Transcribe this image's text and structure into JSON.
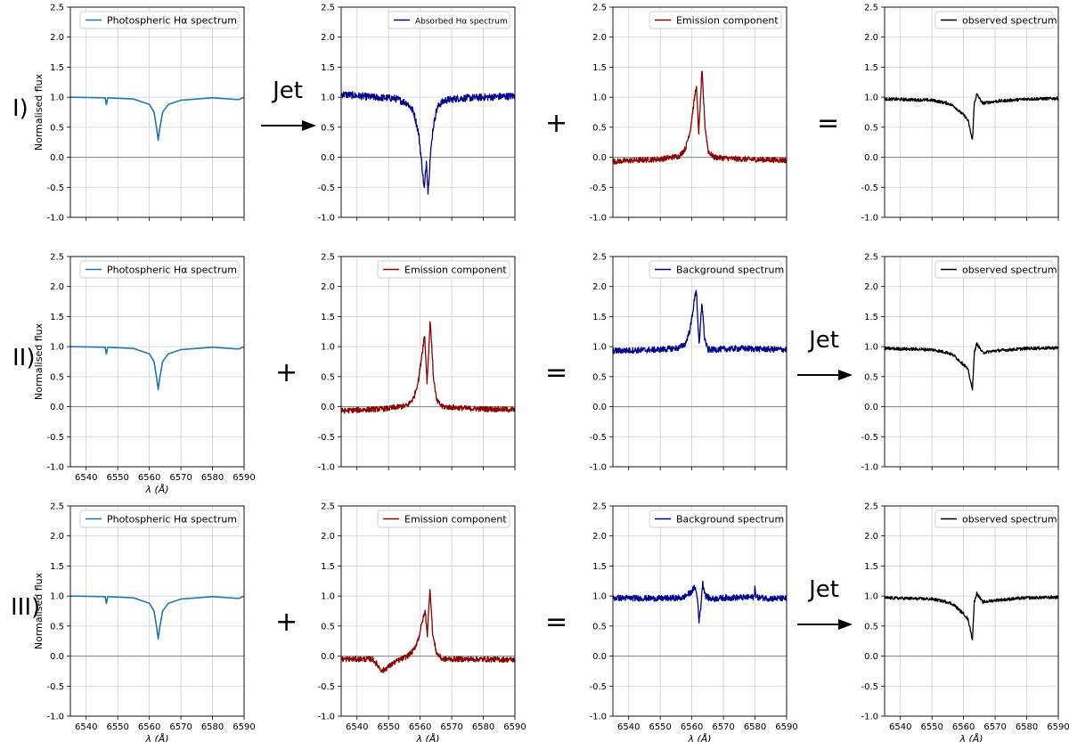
{
  "figure": {
    "rows": [
      {
        "label": "I)",
        "operators": [
          {
            "kind": "jet",
            "text": "Jet"
          },
          {
            "kind": "symbol",
            "text": "+"
          },
          {
            "kind": "symbol",
            "text": "="
          }
        ]
      },
      {
        "label": "II)",
        "operators": [
          {
            "kind": "symbol",
            "text": "+"
          },
          {
            "kind": "symbol",
            "text": "="
          },
          {
            "kind": "jet",
            "text": "Jet"
          }
        ]
      },
      {
        "label": "III)",
        "operators": [
          {
            "kind": "symbol",
            "text": "+"
          },
          {
            "kind": "symbol",
            "text": "="
          },
          {
            "kind": "jet",
            "text": "Jet"
          }
        ]
      }
    ],
    "ylabel": "Normalised flux",
    "xlabel": "λ (Å)"
  },
  "colors": {
    "photospheric": "#1f77b4",
    "absorbed": "#00008b",
    "emission": "#8b0000",
    "background": "#00008b",
    "observed": "#000000",
    "grid": "#d0d0d0",
    "zero_line": "#808080"
  },
  "chart_data": [
    {
      "type": "line",
      "row": 0,
      "col": 0,
      "profile": "photospheric",
      "legend": "Photospheric Hα spectrum",
      "color_key": "photospheric",
      "xlim": [
        6535,
        6590
      ],
      "ylim": [
        -1.0,
        2.5
      ],
      "grid": true,
      "legend_loc": "top-right",
      "xticks": [
        6540,
        6550,
        6560,
        6570,
        6580,
        6590
      ],
      "yticks": [
        -1.0,
        -0.5,
        0.0,
        0.5,
        1.0,
        1.5,
        2.0,
        2.5
      ],
      "x": [
        6535,
        6546.0,
        6546.4,
        6546.8,
        6555,
        6560,
        6561.5,
        6562.4,
        6562.8,
        6563.2,
        6564.2,
        6566,
        6570,
        6580,
        6588.3,
        6590
      ],
      "y": [
        1.0,
        0.99,
        0.87,
        0.99,
        0.97,
        0.88,
        0.75,
        0.45,
        0.28,
        0.45,
        0.75,
        0.88,
        0.95,
        0.99,
        0.96,
        1.0
      ]
    },
    {
      "type": "line",
      "row": 0,
      "col": 1,
      "profile": "absorbed",
      "legend": "Absorbed Hα spectrum",
      "color_key": "absorbed",
      "xlim": [
        6535,
        6590
      ],
      "ylim": [
        -1.0,
        2.5
      ],
      "grid": true,
      "legend_loc": "top-right",
      "xticks": [
        6540,
        6550,
        6560,
        6570,
        6580,
        6590
      ],
      "yticks": [
        -1.0,
        -0.5,
        0.0,
        0.5,
        1.0,
        1.5,
        2.0,
        2.5
      ],
      "x": [
        6535,
        6545,
        6552,
        6556,
        6558,
        6559.5,
        6560.5,
        6561.3,
        6562.0,
        6562.5,
        6563.2,
        6564.0,
        6565.0,
        6566,
        6568,
        6572,
        6580,
        6590
      ],
      "y": [
        1.05,
        1.0,
        0.98,
        0.9,
        0.75,
        0.4,
        -0.1,
        -0.55,
        -0.05,
        -0.58,
        0.0,
        0.45,
        0.75,
        0.88,
        0.95,
        0.98,
        1.0,
        1.02
      ]
    },
    {
      "type": "line",
      "row": 0,
      "col": 2,
      "profile": "emission",
      "legend": "Emission component",
      "color_key": "emission",
      "xlim": [
        6535,
        6590
      ],
      "ylim": [
        -1.0,
        2.5
      ],
      "grid": true,
      "legend_loc": "top-right",
      "xticks": [
        6540,
        6550,
        6560,
        6570,
        6580,
        6590
      ],
      "yticks": [
        -1.0,
        -0.5,
        0.0,
        0.5,
        1.0,
        1.5,
        2.0,
        2.5
      ],
      "x": [
        6535,
        6550,
        6556,
        6558,
        6559.5,
        6560.5,
        6561.4,
        6562.2,
        6563.2,
        6564.2,
        6565.2,
        6567,
        6575,
        6590
      ],
      "y": [
        -0.07,
        -0.03,
        0.02,
        0.15,
        0.45,
        0.85,
        1.2,
        0.4,
        1.45,
        0.5,
        0.1,
        0.0,
        -0.03,
        -0.05
      ]
    },
    {
      "type": "line",
      "row": 0,
      "col": 3,
      "profile": "observed",
      "legend": "observed spectrum",
      "color_key": "observed",
      "xlim": [
        6535,
        6590
      ],
      "ylim": [
        -1.0,
        2.5
      ],
      "grid": true,
      "legend_loc": "top-right",
      "xticks": [
        6540,
        6550,
        6560,
        6570,
        6580,
        6590
      ],
      "yticks": [
        -1.0,
        -0.5,
        0.0,
        0.5,
        1.0,
        1.5,
        2.0,
        2.5
      ],
      "x": [
        6535,
        6550,
        6555,
        6557,
        6559,
        6560.5,
        6561.5,
        6562.3,
        6562.8,
        6563.4,
        6564.2,
        6566,
        6570,
        6580,
        6590
      ],
      "y": [
        0.97,
        0.95,
        0.9,
        0.85,
        0.75,
        0.68,
        0.6,
        0.4,
        0.27,
        0.9,
        1.05,
        0.9,
        0.93,
        0.97,
        0.98
      ]
    },
    {
      "type": "line",
      "row": 1,
      "col": 0,
      "profile": "photospheric",
      "legend": "Photospheric Hα spectrum",
      "color_key": "photospheric",
      "xlim": [
        6535,
        6590
      ],
      "ylim": [
        -1.0,
        2.5
      ],
      "grid": true,
      "legend_loc": "top-right",
      "xticks": [
        6540,
        6550,
        6560,
        6570,
        6580,
        6590
      ],
      "yticks": [
        -1.0,
        -0.5,
        0.0,
        0.5,
        1.0,
        1.5,
        2.0,
        2.5
      ],
      "x": [
        6535,
        6546.0,
        6546.4,
        6546.8,
        6555,
        6560,
        6561.5,
        6562.4,
        6562.8,
        6563.2,
        6564.2,
        6566,
        6570,
        6580,
        6588.3,
        6590
      ],
      "y": [
        1.0,
        0.99,
        0.87,
        0.99,
        0.97,
        0.88,
        0.75,
        0.45,
        0.28,
        0.45,
        0.75,
        0.88,
        0.95,
        0.99,
        0.96,
        1.0
      ]
    },
    {
      "type": "line",
      "row": 1,
      "col": 1,
      "profile": "emission",
      "legend": "Emission component",
      "color_key": "emission",
      "xlim": [
        6535,
        6590
      ],
      "ylim": [
        -1.0,
        2.5
      ],
      "grid": true,
      "legend_loc": "top-right",
      "xticks": [
        6540,
        6550,
        6560,
        6570,
        6580,
        6590
      ],
      "yticks": [
        -1.0,
        -0.5,
        0.0,
        0.5,
        1.0,
        1.5,
        2.0,
        2.5
      ],
      "x": [
        6535,
        6550,
        6556,
        6558,
        6559.5,
        6560.5,
        6561.4,
        6562.2,
        6563.2,
        6564.2,
        6565.2,
        6567,
        6575,
        6590
      ],
      "y": [
        -0.07,
        -0.03,
        0.02,
        0.15,
        0.45,
        0.85,
        1.2,
        0.4,
        1.45,
        0.5,
        0.1,
        0.0,
        -0.03,
        -0.05
      ]
    },
    {
      "type": "line",
      "row": 1,
      "col": 2,
      "profile": "background",
      "legend": "Background spectrum",
      "color_key": "background",
      "xlim": [
        6535,
        6590
      ],
      "ylim": [
        -1.0,
        2.5
      ],
      "grid": true,
      "legend_loc": "top-right",
      "xticks": [
        6540,
        6550,
        6560,
        6570,
        6580,
        6590
      ],
      "yticks": [
        -1.0,
        -0.5,
        0.0,
        0.5,
        1.0,
        1.5,
        2.0,
        2.5
      ],
      "x": [
        6535,
        6550,
        6556,
        6558,
        6559.5,
        6560.6,
        6561.4,
        6562.3,
        6563.2,
        6564.0,
        6565.0,
        6567,
        6575,
        6590
      ],
      "y": [
        0.93,
        0.95,
        0.98,
        1.05,
        1.3,
        1.7,
        1.98,
        1.0,
        1.75,
        1.15,
        0.95,
        0.95,
        0.97,
        0.95
      ]
    },
    {
      "type": "line",
      "row": 1,
      "col": 3,
      "profile": "observed",
      "legend": "observed spectrum",
      "color_key": "observed",
      "xlim": [
        6535,
        6590
      ],
      "ylim": [
        -1.0,
        2.5
      ],
      "grid": true,
      "legend_loc": "top-right",
      "xticks": [
        6540,
        6550,
        6560,
        6570,
        6580,
        6590
      ],
      "yticks": [
        -1.0,
        -0.5,
        0.0,
        0.5,
        1.0,
        1.5,
        2.0,
        2.5
      ],
      "x": [
        6535,
        6550,
        6555,
        6557,
        6559,
        6560.5,
        6561.5,
        6562.3,
        6562.8,
        6563.4,
        6564.2,
        6566,
        6570,
        6580,
        6590
      ],
      "y": [
        0.97,
        0.95,
        0.9,
        0.85,
        0.75,
        0.68,
        0.6,
        0.4,
        0.27,
        0.9,
        1.05,
        0.9,
        0.93,
        0.97,
        0.98
      ]
    },
    {
      "type": "line",
      "row": 2,
      "col": 0,
      "profile": "photospheric",
      "legend": "Photospheric Hα spectrum",
      "color_key": "photospheric",
      "xlim": [
        6535,
        6590
      ],
      "ylim": [
        -1.0,
        2.5
      ],
      "grid": true,
      "legend_loc": "top-right",
      "xticks": [
        6540,
        6550,
        6560,
        6570,
        6580,
        6590
      ],
      "yticks": [
        -1.0,
        -0.5,
        0.0,
        0.5,
        1.0,
        1.5,
        2.0,
        2.5
      ],
      "x": [
        6535,
        6546.0,
        6546.4,
        6546.8,
        6555,
        6560,
        6561.5,
        6562.4,
        6562.8,
        6563.2,
        6564.2,
        6566,
        6570,
        6580,
        6588.3,
        6590
      ],
      "y": [
        1.0,
        0.99,
        0.87,
        0.99,
        0.97,
        0.88,
        0.75,
        0.45,
        0.28,
        0.45,
        0.75,
        0.88,
        0.95,
        0.99,
        0.96,
        1.0
      ]
    },
    {
      "type": "line",
      "row": 2,
      "col": 1,
      "profile": "emission",
      "legend": "Emission component",
      "color_key": "emission",
      "xlim": [
        6535,
        6590
      ],
      "ylim": [
        -1.0,
        2.5
      ],
      "grid": true,
      "legend_loc": "top-right",
      "xticks": [
        6540,
        6550,
        6560,
        6570,
        6580,
        6590
      ],
      "yticks": [
        -1.0,
        -0.5,
        0.0,
        0.5,
        1.0,
        1.5,
        2.0,
        2.5
      ],
      "x": [
        6535,
        6545,
        6548,
        6552,
        6556,
        6558,
        6559.5,
        6560.8,
        6561.6,
        6562.3,
        6563.1,
        6564.0,
        6565.2,
        6567,
        6575,
        6590
      ],
      "y": [
        -0.05,
        -0.05,
        -0.25,
        -0.1,
        0.0,
        0.1,
        0.3,
        0.6,
        0.75,
        0.35,
        1.15,
        0.35,
        0.05,
        -0.05,
        -0.05,
        -0.06
      ]
    },
    {
      "type": "line",
      "row": 2,
      "col": 2,
      "profile": "background",
      "legend": "Background spectrum",
      "color_key": "background",
      "xlim": [
        6535,
        6590
      ],
      "ylim": [
        -1.0,
        2.5
      ],
      "grid": true,
      "legend_loc": "top-right",
      "xticks": [
        6540,
        6550,
        6560,
        6570,
        6580,
        6590
      ],
      "yticks": [
        -1.0,
        -0.5,
        0.0,
        0.5,
        1.0,
        1.5,
        2.0,
        2.5
      ],
      "x": [
        6535,
        6550,
        6557,
        6559.5,
        6561.0,
        6561.8,
        6562.3,
        6562.8,
        6563.4,
        6564.4,
        6566,
        6570,
        6579.8,
        6580.0,
        6580.3,
        6585,
        6590
      ],
      "y": [
        0.97,
        0.96,
        0.97,
        1.05,
        1.15,
        0.95,
        0.58,
        0.8,
        1.22,
        1.0,
        0.95,
        0.97,
        0.98,
        1.2,
        0.98,
        0.96,
        0.96
      ]
    },
    {
      "type": "line",
      "row": 2,
      "col": 3,
      "profile": "observed",
      "legend": "observed spectrum",
      "color_key": "observed",
      "xlim": [
        6535,
        6590
      ],
      "ylim": [
        -1.0,
        2.5
      ],
      "grid": true,
      "legend_loc": "top-right",
      "xticks": [
        6540,
        6550,
        6560,
        6570,
        6580,
        6590
      ],
      "yticks": [
        -1.0,
        -0.5,
        0.0,
        0.5,
        1.0,
        1.5,
        2.0,
        2.5
      ],
      "x": [
        6535,
        6550,
        6555,
        6557,
        6559,
        6560.5,
        6561.5,
        6562.3,
        6562.8,
        6563.4,
        6564.2,
        6566,
        6570,
        6580,
        6590
      ],
      "y": [
        0.97,
        0.95,
        0.9,
        0.85,
        0.75,
        0.68,
        0.6,
        0.4,
        0.27,
        0.9,
        1.05,
        0.9,
        0.93,
        0.97,
        0.98
      ]
    }
  ]
}
